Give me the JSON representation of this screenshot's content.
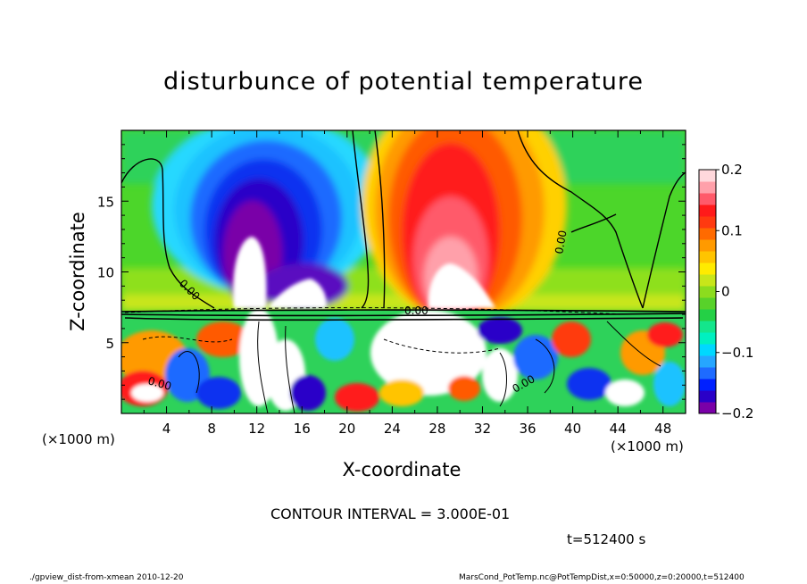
{
  "chart_data": {
    "type": "heatmap",
    "title": "disturbunce of potential temperature",
    "xlabel": "X-coordinate",
    "ylabel": "Z-coordinate",
    "x_unit": "(×1000 m)",
    "xlim": [
      0,
      50
    ],
    "ylim": [
      0,
      20
    ],
    "x_ticks": [
      "4",
      "8",
      "12",
      "16",
      "20",
      "24",
      "28",
      "32",
      "36",
      "40",
      "44",
      "48"
    ],
    "y_ticks": [
      "5",
      "10",
      "15"
    ],
    "colorbar": {
      "range": [
        -0.2,
        0.2
      ],
      "tick_labels": [
        "0.2",
        "0.1",
        "0",
        "−0.1",
        "−0.2"
      ],
      "colors": [
        "#7a00a8",
        "#2a00c8",
        "#0020ff",
        "#1e6bff",
        "#26a6ff",
        "#00d8ff",
        "#00f0c0",
        "#14e68c",
        "#24d046",
        "#58d22a",
        "#8cdc1e",
        "#c8e61a",
        "#ffeb00",
        "#ffc400",
        "#ff9a00",
        "#ff6a00",
        "#ff3a10",
        "#ff1a1a",
        "#ff5a6a",
        "#ffa0aa",
        "#ffd8dc"
      ]
    },
    "contour_labels": [
      "0.00",
      "0.00",
      "0.00",
      "0.00",
      "0.00"
    ],
    "grid": false
  },
  "texts": {
    "contour_interval": "CONTOUR INTERVAL = 3.000E-01",
    "time": "t=512400 s",
    "footer_left": "./gpview_dist-from-xmean  2010-12-20",
    "footer_right": "MarsCond_PotTemp.nc@PotTempDist,x=0:50000,z=0:20000,t=512400"
  }
}
